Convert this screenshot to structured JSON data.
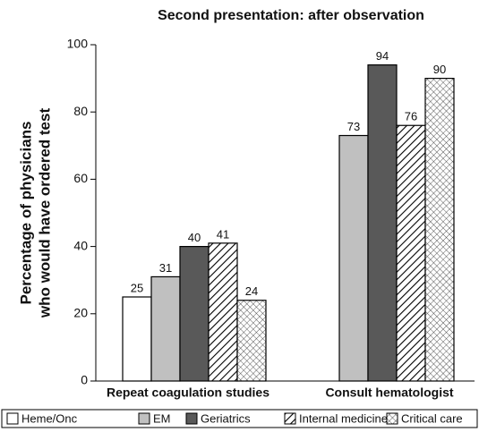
{
  "chart_data": {
    "type": "bar",
    "title": "Second presentation: after observation",
    "ylabel": [
      "Percentage of physicians",
      "who would have ordered test"
    ],
    "categories": [
      "Repeat coagulation studies",
      "Consult hematologist"
    ],
    "series": [
      {
        "name": "Heme/Onc",
        "color": "#ffffff",
        "pattern": "none",
        "values": [
          25,
          null
        ]
      },
      {
        "name": "EM",
        "color": "#c0c0c0",
        "pattern": "none",
        "values": [
          31,
          73
        ]
      },
      {
        "name": "Geriatrics",
        "color": "#595959",
        "pattern": "none",
        "values": [
          40,
          94
        ]
      },
      {
        "name": "Internal medicine",
        "color": "#ffffff",
        "pattern": "hatch",
        "values": [
          41,
          76
        ]
      },
      {
        "name": "Critical care",
        "color": "#ffffff",
        "pattern": "crosshatch",
        "values": [
          24,
          90
        ]
      }
    ],
    "ylim": [
      0,
      100
    ],
    "yticks": [
      0,
      20,
      40,
      60,
      80,
      100
    ],
    "grid": false,
    "legend": "bottom"
  }
}
